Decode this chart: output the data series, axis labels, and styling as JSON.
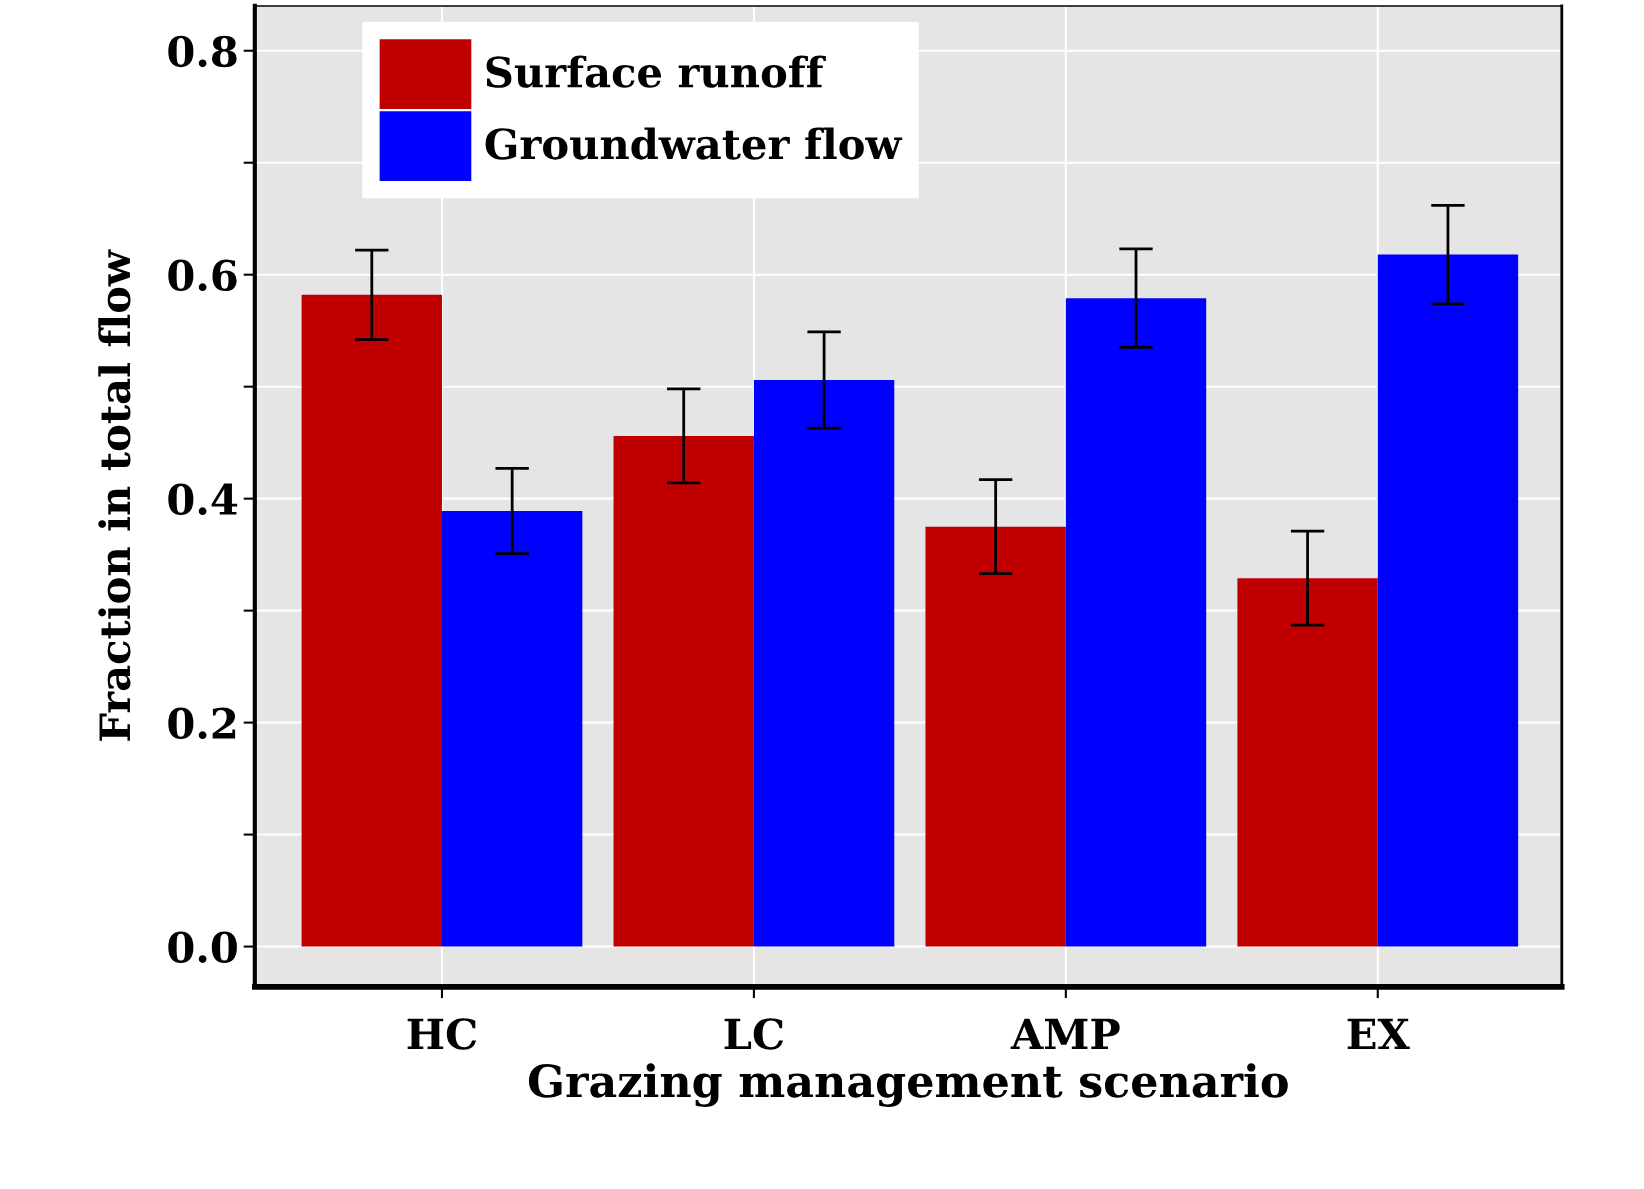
{
  "chart_data": {
    "type": "bar",
    "xlabel": "Grazing management scenario",
    "ylabel": "Fraction in total flow",
    "categories": [
      "HC",
      "LC",
      "AMP",
      "EX"
    ],
    "series": [
      {
        "name": "Surface runoff",
        "color": "#c00000",
        "values": [
          0.582,
          0.456,
          0.375,
          0.329
        ],
        "errors": [
          0.04,
          0.042,
          0.042,
          0.042
        ]
      },
      {
        "name": "Groundwater flow",
        "color": "#0000ff",
        "values": [
          0.389,
          0.506,
          0.579,
          0.618
        ],
        "errors": [
          0.038,
          0.043,
          0.044,
          0.044
        ]
      }
    ],
    "ylim": [
      -0.036,
      0.84
    ],
    "yticks": [
      {
        "value": 0.0,
        "label": "0.0"
      },
      {
        "value": 0.1,
        "label": null
      },
      {
        "value": 0.2,
        "label": "0.2"
      },
      {
        "value": 0.3,
        "label": null
      },
      {
        "value": 0.4,
        "label": "0.4"
      },
      {
        "value": 0.5,
        "label": null
      },
      {
        "value": 0.6,
        "label": "0.6"
      },
      {
        "value": 0.7,
        "label": null
      },
      {
        "value": 0.8,
        "label": "0.8"
      }
    ],
    "grid": true,
    "legend": "top left"
  }
}
